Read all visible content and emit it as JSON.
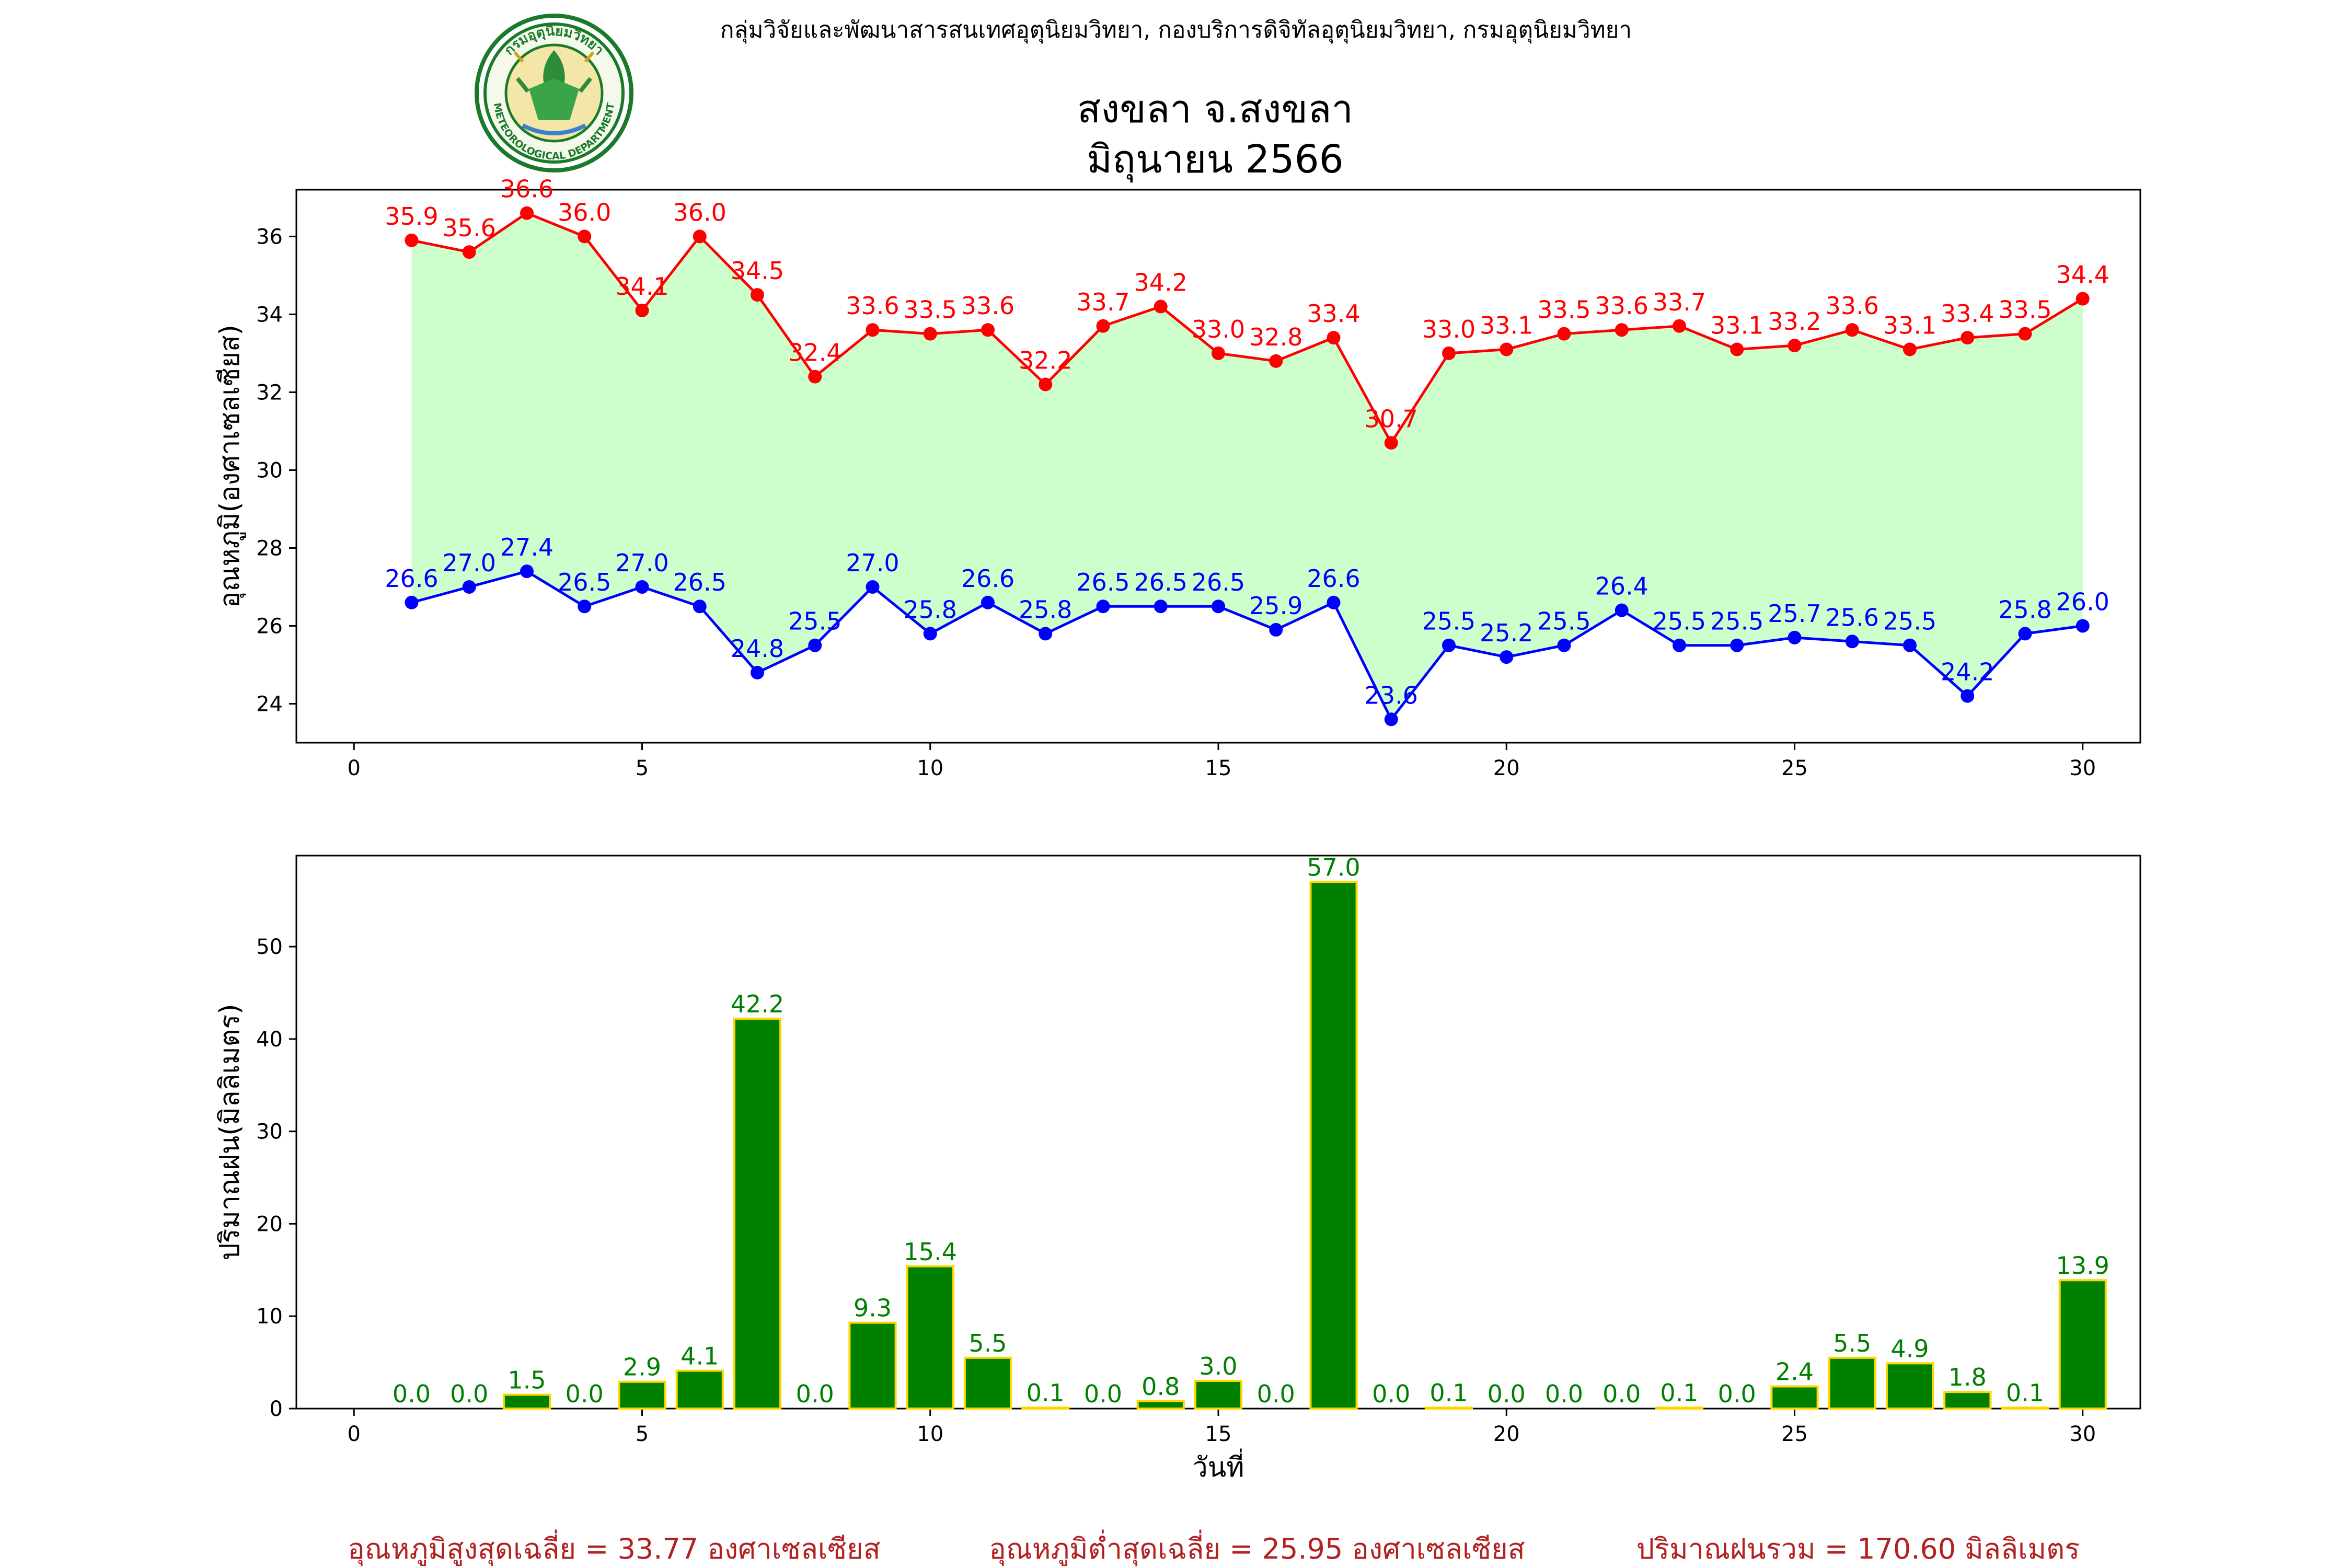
{
  "header": {
    "agency": "กลุ่มวิจัยและพัฒนาสารสนเทศอุตุนิยมวิทยา, กองบริการดิจิทัลอุตุนิยมวิทยา, กรมอุตุนิยมวิทยา",
    "station": "สงขลา จ.สงขลา",
    "period": "มิถุนายน 2566",
    "logo": {
      "top_text": "กรมอุตุนิยมวิทยา",
      "bottom_text": "METEOROLOGICAL DEPARTMENT"
    }
  },
  "colors": {
    "max_temp": "#ff0000",
    "min_temp": "#0000ff",
    "fill": "#ccffcc",
    "rain_bar": "#008000",
    "rain_edge": "#ffd700",
    "agency_text": "#0000ff",
    "summary_text": "#b22222"
  },
  "chart_data": [
    {
      "type": "line",
      "ylabel": "อุณหภูมิ(องศาเซลเซียส)",
      "xlabel": "",
      "xlim": [
        -1,
        31
      ],
      "ylim": [
        23,
        37.2
      ],
      "xticks": [
        0,
        5,
        10,
        15,
        20,
        25,
        30
      ],
      "yticks": [
        24,
        26,
        28,
        30,
        32,
        34,
        36
      ],
      "x": [
        1,
        2,
        3,
        4,
        5,
        6,
        7,
        8,
        9,
        10,
        11,
        12,
        13,
        14,
        15,
        16,
        17,
        18,
        19,
        20,
        21,
        22,
        23,
        24,
        25,
        26,
        27,
        28,
        29,
        30
      ],
      "series": [
        {
          "values": [
            35.9,
            35.6,
            36.6,
            36.0,
            34.1,
            36.0,
            34.5,
            32.4,
            33.6,
            33.5,
            33.6,
            32.2,
            33.7,
            34.2,
            33.0,
            32.8,
            33.4,
            30.7,
            33.0,
            33.1,
            33.5,
            33.6,
            33.7,
            33.1,
            33.2,
            33.6,
            33.1,
            33.4,
            33.5,
            34.4
          ]
        },
        {
          "values": [
            26.6,
            27.0,
            27.4,
            26.5,
            27.0,
            26.5,
            24.8,
            25.5,
            27.0,
            25.8,
            26.6,
            25.8,
            26.5,
            26.5,
            26.5,
            25.9,
            26.6,
            23.6,
            25.5,
            25.2,
            25.5,
            26.4,
            25.5,
            25.5,
            25.7,
            25.6,
            25.5,
            24.2,
            25.8,
            26.0
          ]
        }
      ]
    },
    {
      "type": "bar",
      "ylabel": "ปริมาณฝน(มิลลิเมตร)",
      "xlabel": "วันที่",
      "xlim": [
        -1,
        31
      ],
      "ylim": [
        0,
        59.85
      ],
      "xticks": [
        0,
        5,
        10,
        15,
        20,
        25,
        30
      ],
      "yticks": [
        0,
        10,
        20,
        30,
        40,
        50
      ],
      "x": [
        1,
        2,
        3,
        4,
        5,
        6,
        7,
        8,
        9,
        10,
        11,
        12,
        13,
        14,
        15,
        16,
        17,
        18,
        19,
        20,
        21,
        22,
        23,
        24,
        25,
        26,
        27,
        28,
        29,
        30
      ],
      "values": [
        0.0,
        0.0,
        1.5,
        0.0,
        2.9,
        4.1,
        42.2,
        0.0,
        9.3,
        15.4,
        5.5,
        0.1,
        0.0,
        0.8,
        3.0,
        0.0,
        57.0,
        0.0,
        0.1,
        0.0,
        0.0,
        0.0,
        0.1,
        0.0,
        2.4,
        5.5,
        4.9,
        1.8,
        0.1,
        13.9
      ]
    }
  ],
  "summary": {
    "max_avg": "อุณหภูมิสูงสุดเฉลี่ย = 33.77 องศาเซลเซียส",
    "min_avg": "อุณหภูมิต่ำสุดเฉลี่ย = 25.95 องศาเซลเซียส",
    "rain_total": "ปริมาณฝนรวม = 170.60 มิลลิเมตร"
  }
}
